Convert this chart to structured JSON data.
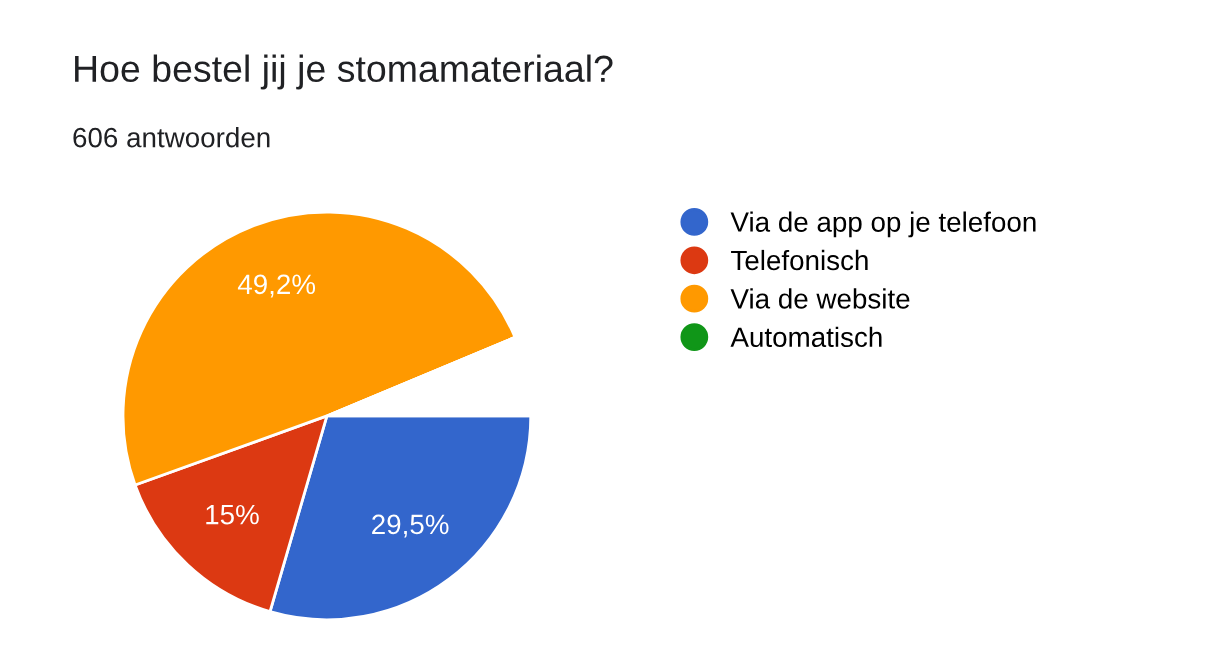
{
  "chart_data": {
    "type": "pie",
    "title": "Hoe bestel jij je stomamateriaal?",
    "annotations": [
      "606 antwoorden"
    ],
    "categories": [
      "Via de app op je telefoon",
      "Telefonisch",
      "Via de website",
      "Automatisch",
      null
    ],
    "values": [
      29.5,
      15,
      49.2,
      0,
      6.3
    ],
    "colors": [
      "#3366cc",
      "#dc3912",
      "#ff9900",
      "#109618",
      "#ffffff"
    ],
    "value_labels": [
      "29,5%",
      "15%",
      "49,2%",
      null,
      null
    ],
    "legend": "right"
  }
}
